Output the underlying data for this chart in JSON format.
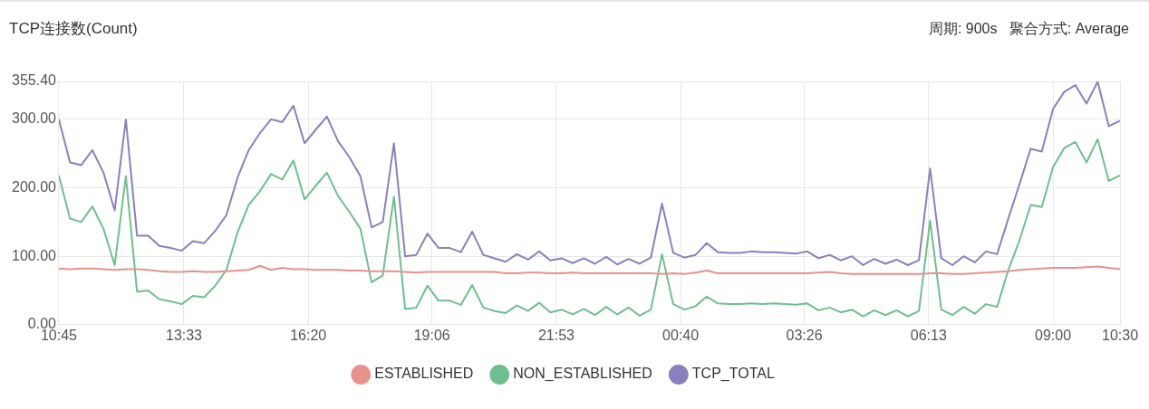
{
  "chart_data": {
    "type": "line",
    "title": "TCP连接数(Count)",
    "annotations": [
      "周期: 900s   聚合方式: Average"
    ],
    "x": [
      "--01-01T10:45",
      "--01-01T11:00",
      "--01-01T11:15",
      "--01-01T11:30",
      "--01-01T11:45",
      "--01-01T12:00",
      "--01-01T12:15",
      "--01-01T12:30",
      "--01-01T12:45",
      "--01-01T13:00",
      "--01-01T13:15",
      "--01-01T13:30",
      "--01-01T13:45",
      "--01-01T14:00",
      "--01-01T14:15",
      "--01-01T14:30",
      "--01-01T14:45",
      "--01-01T15:00",
      "--01-01T15:15",
      "--01-01T15:30",
      "--01-01T15:45",
      "--01-01T16:00",
      "--01-01T16:15",
      "--01-01T16:30",
      "--01-01T16:45",
      "--01-01T17:00",
      "--01-01T17:15",
      "--01-01T17:30",
      "--01-01T17:45",
      "--01-01T18:00",
      "--01-01T18:15",
      "--01-01T18:30",
      "--01-01T18:45",
      "--01-01T19:00",
      "--01-01T19:15",
      "--01-01T19:30",
      "--01-01T19:45",
      "--01-01T20:00",
      "--01-01T20:15",
      "--01-01T20:30",
      "--01-01T20:45",
      "--01-01T21:00",
      "--01-01T21:15",
      "--01-01T21:30",
      "--01-01T21:45",
      "--01-01T22:00",
      "--01-01T22:15",
      "--01-01T22:30",
      "--01-01T22:45",
      "--01-01T23:00",
      "--01-01T23:15",
      "--01-01T23:30",
      "--01-01T23:45",
      "--01-02T00:00",
      "--01-02T00:15",
      "--01-02T00:30",
      "--01-02T00:45",
      "--01-02T01:00",
      "--01-02T01:15",
      "--01-02T01:30",
      "--01-02T01:45",
      "--01-02T02:00",
      "--01-02T02:15",
      "--01-02T02:30",
      "--01-02T02:45",
      "--01-02T03:00",
      "--01-02T03:15",
      "--01-02T03:30",
      "--01-02T03:45",
      "--01-02T04:00",
      "--01-02T04:15",
      "--01-02T04:30",
      "--01-02T04:45",
      "--01-02T05:00",
      "--01-02T05:15",
      "--01-02T05:30",
      "--01-02T05:45",
      "--01-02T06:00",
      "--01-02T06:15",
      "--01-02T06:30",
      "--01-02T06:45",
      "--01-02T07:00",
      "--01-02T07:15",
      "--01-02T07:30",
      "--01-02T07:45",
      "--01-02T08:00",
      "--01-02T08:15",
      "--01-02T08:30",
      "--01-02T08:45",
      "--01-02T09:00",
      "--01-02T09:15",
      "--01-02T09:30",
      "--01-02T09:45",
      "--01-02T10:00",
      "--01-02T10:15",
      "--01-02T10:30"
    ],
    "xlim": [
      "--01-01T10:45",
      "--01-02T10:30"
    ],
    "xticks": [
      {
        "value": "--01-01T10:45",
        "label": "10:45"
      },
      {
        "value": "--01-01T13:33",
        "label": "13:33"
      },
      {
        "value": "--01-01T16:20",
        "label": "16:20"
      },
      {
        "value": "--01-01T19:06",
        "label": "19:06"
      },
      {
        "value": "--01-01T21:53",
        "label": "21:53"
      },
      {
        "value": "--01-02T00:40",
        "label": "00:40"
      },
      {
        "value": "--01-02T03:26",
        "label": "03:26"
      },
      {
        "value": "--01-02T06:13",
        "label": "06:13"
      },
      {
        "value": "--01-02T09:00",
        "label": "09:00"
      },
      {
        "value": "--01-02T10:30",
        "label": "10:30"
      }
    ],
    "ylim": [
      0,
      355.4
    ],
    "yticks": [
      {
        "value": 0,
        "label": "0.00"
      },
      {
        "value": 100,
        "label": "100.00"
      },
      {
        "value": 200,
        "label": "200.00"
      },
      {
        "value": 300,
        "label": "300.00"
      },
      {
        "value": 355.4,
        "label": "355.40"
      }
    ],
    "grid": true,
    "legend": "bottom",
    "marker": "none",
    "line_style": "solid",
    "series": [
      {
        "name": "ESTABLISHED",
        "color": "#e8928a",
        "values": [
          82,
          81,
          82,
          82,
          81,
          80,
          81,
          81,
          80,
          78,
          77,
          77,
          78,
          77,
          77,
          78,
          79,
          80,
          86,
          80,
          83,
          81,
          81,
          80,
          80,
          80,
          79,
          79,
          78,
          78,
          78,
          77,
          76,
          77,
          77,
          77,
          77,
          77,
          77,
          77,
          75,
          75,
          76,
          76,
          75,
          75,
          76,
          75,
          75,
          75,
          75,
          75,
          75,
          75,
          74,
          75,
          74,
          76,
          79,
          75,
          75,
          75,
          75,
          75,
          75,
          75,
          75,
          75,
          76,
          77,
          75,
          74,
          74,
          74,
          74,
          74,
          74,
          74,
          75,
          75,
          74,
          74,
          75,
          76,
          77,
          78,
          80,
          81,
          82,
          83,
          83,
          83,
          84,
          85,
          83,
          81
        ]
      },
      {
        "name": "NON_ESTABLISHED",
        "color": "#6fbf8e",
        "values": [
          218,
          155,
          150,
          173,
          140,
          87,
          217,
          48,
          50,
          37,
          34,
          30,
          42,
          40,
          57,
          80,
          135,
          175,
          195,
          220,
          212,
          240,
          183,
          203,
          222,
          188,
          165,
          140,
          62,
          72,
          187,
          23,
          25,
          57,
          35,
          35,
          29,
          58,
          25,
          20,
          17,
          28,
          20,
          32,
          18,
          22,
          15,
          23,
          14,
          26,
          15,
          25,
          13,
          22,
          103,
          30,
          22,
          27,
          41,
          31,
          30,
          30,
          31,
          30,
          31,
          30,
          29,
          31,
          21,
          25,
          18,
          22,
          12,
          21,
          14,
          21,
          12,
          20,
          152,
          22,
          14,
          26,
          16,
          30,
          26,
          80,
          123,
          175,
          172,
          230,
          258,
          267,
          237,
          271,
          210,
          218
        ]
      },
      {
        "name": "TCP_TOTAL",
        "color": "#8c7fc0",
        "values": [
          300,
          237,
          233,
          255,
          222,
          167,
          300,
          130,
          130,
          115,
          112,
          108,
          122,
          119,
          137,
          160,
          215,
          255,
          280,
          300,
          296,
          320,
          265,
          285,
          304,
          268,
          245,
          217,
          142,
          150,
          265,
          100,
          102,
          133,
          112,
          112,
          106,
          136,
          102,
          97,
          92,
          103,
          95,
          107,
          94,
          97,
          90,
          97,
          89,
          99,
          88,
          96,
          89,
          98,
          177,
          105,
          98,
          102,
          119,
          106,
          105,
          105,
          107,
          106,
          106,
          105,
          104,
          107,
          97,
          102,
          94,
          100,
          87,
          96,
          89,
          95,
          87,
          94,
          228,
          97,
          87,
          100,
          91,
          107,
          103,
          155,
          205,
          257,
          253,
          315,
          340,
          350,
          323,
          355,
          290,
          298
        ]
      }
    ]
  }
}
